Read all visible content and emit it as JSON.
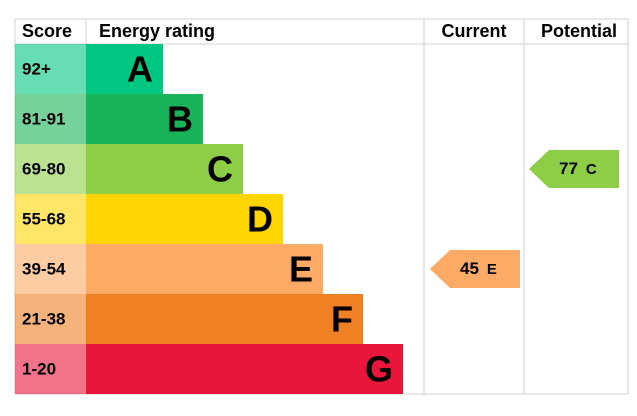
{
  "header": {
    "score": "Score",
    "rating": "Energy rating",
    "current": "Current",
    "potential": "Potential"
  },
  "bands": [
    {
      "score": "92+",
      "letter": "A",
      "color": "#00c781"
    },
    {
      "score": "81-91",
      "letter": "B",
      "color": "#19b459"
    },
    {
      "score": "69-80",
      "letter": "C",
      "color": "#8dce46"
    },
    {
      "score": "55-68",
      "letter": "D",
      "color": "#ffd500"
    },
    {
      "score": "39-54",
      "letter": "E",
      "color": "#fcaa65"
    },
    {
      "score": "21-38",
      "letter": "F",
      "color": "#ef8023"
    },
    {
      "score": "1-20",
      "letter": "G",
      "color": "#e9153b"
    }
  ],
  "current": {
    "value": 45,
    "rating": "E"
  },
  "potential": {
    "value": 77,
    "rating": "C"
  }
}
